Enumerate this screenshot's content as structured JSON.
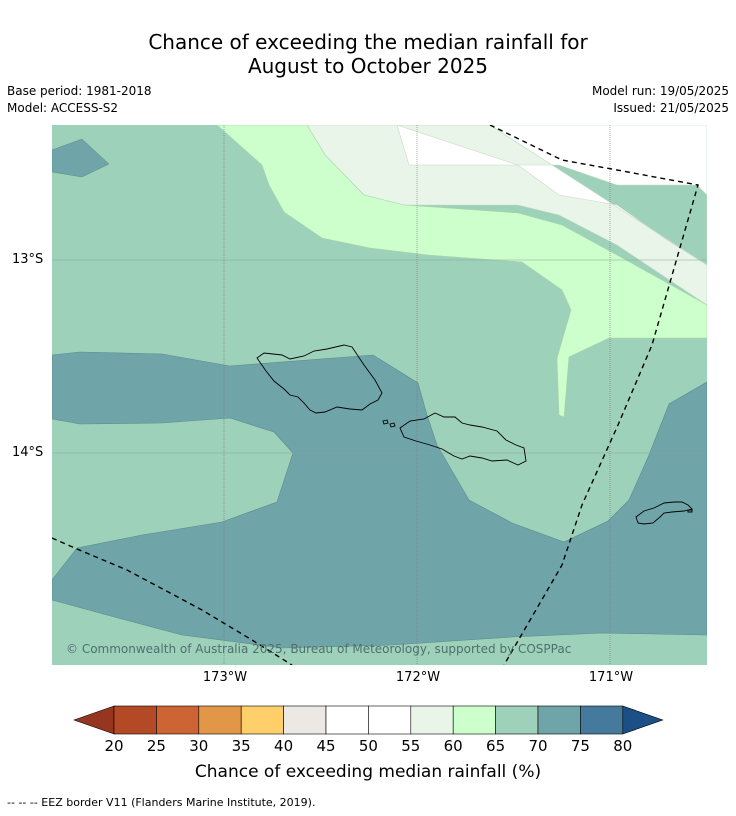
{
  "title_line1": "Chance of exceeding the median rainfall for",
  "title_line2": "August to October 2025",
  "meta": {
    "base_period": "Base period: 1981-2018",
    "model": "Model: ACCESS-S2",
    "model_run": "Model run: 19/05/2025",
    "issued": "Issued: 21/05/2025"
  },
  "map": {
    "lat_labels": [
      "13°S",
      "14°S"
    ],
    "lon_labels": [
      "173°W",
      "172°W",
      "171°W"
    ],
    "copyright": "© Commonwealth of Australia 2025, Bureau of Meteorology, supported by COSPPac",
    "colors": {
      "c55_60": "#e8f5e8",
      "c60_65": "#ccffcc",
      "c65_70": "#9ed1b9",
      "c70_75": "#6fa4a8"
    }
  },
  "colorbar": {
    "label": "Chance of exceeding median rainfall (%)",
    "ticks": [
      "20",
      "25",
      "30",
      "35",
      "40",
      "45",
      "50",
      "55",
      "60",
      "65",
      "70",
      "75",
      "80"
    ],
    "colors": [
      "#b34a25",
      "#cd6433",
      "#e29647",
      "#ffcf6c",
      "#ece8e4",
      "#ffffff",
      "#ffffff",
      "#e8f5e8",
      "#ccffcc",
      "#9ed1b9",
      "#6fa4a8",
      "#467a9c"
    ],
    "under_color": "#963520",
    "over_color": "#1c4f86"
  },
  "legend_note": "--  --  -- EEZ border V11 (Flanders Marine Institute, 2019)."
}
